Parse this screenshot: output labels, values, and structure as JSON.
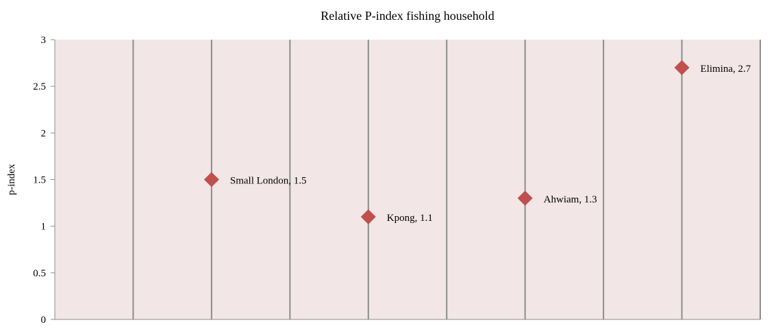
{
  "chart_data": {
    "type": "scatter",
    "title": "Relative P-index fishing household",
    "xlabel": "",
    "ylabel": "p-index",
    "ylim": [
      0,
      3
    ],
    "xlim": [
      0,
      9
    ],
    "y_ticks": [
      "0",
      "0.5",
      "1",
      "1.5",
      "2",
      "2.5",
      "3"
    ],
    "grid": "vertical",
    "legend": "none",
    "points": [
      {
        "label": "Small London, 1.5",
        "name": "Small London",
        "x": 2,
        "y": 1.5
      },
      {
        "label": "Kpong, 1.1",
        "name": "Kpong",
        "x": 4,
        "y": 1.1
      },
      {
        "label": "Ahwiam, 1.3",
        "name": "Ahwiam",
        "x": 6,
        "y": 1.3
      },
      {
        "label": "Elimina, 2.7",
        "name": "Elimina",
        "x": 8,
        "y": 2.7
      }
    ]
  },
  "colors": {
    "plot_background": "#f2e6e6",
    "gridline": "#8c8c8c",
    "marker": "#c0504d",
    "axis": "#8c8c8c"
  }
}
